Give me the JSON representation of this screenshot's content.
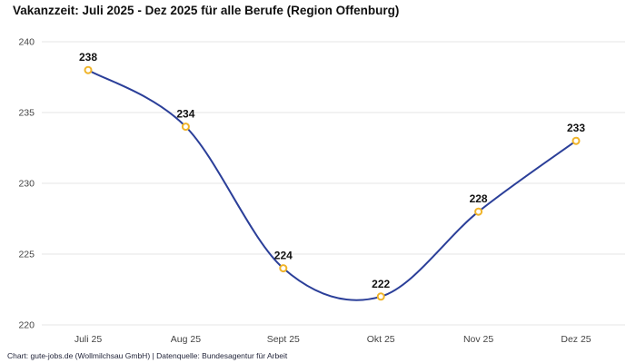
{
  "title": "Vakanzzeit: Juli 2025 - Dez 2025 für alle Berufe (Region Offenburg)",
  "footer": "Chart: gute-jobs.de (Wollmilchsau GmbH) | Datenquelle: Bundesagentur für Arbeit",
  "colors": {
    "line": "#2b3f99",
    "marker_stroke": "#f0b429",
    "marker_fill": "#ffffff",
    "grid": "#e4e4e4",
    "tick_text": "#444444",
    "label_text": "#111111"
  },
  "chart_data": {
    "type": "line",
    "title": "Vakanzzeit: Juli 2025 - Dez 2025 für alle Berufe (Region Offenburg)",
    "categories": [
      "Juli 25",
      "Aug 25",
      "Sept 25",
      "Okt 25",
      "Nov 25",
      "Dez 25"
    ],
    "values": [
      238,
      234,
      224,
      222,
      228,
      233
    ],
    "xlabel": "",
    "ylabel": "",
    "ylim": [
      220,
      240
    ],
    "yticks": [
      220,
      225,
      230,
      235,
      240
    ],
    "grid": true,
    "legend": false,
    "smooth": true,
    "data_labels": true,
    "line_color": "#2b3f99",
    "marker_stroke": "#f0b429",
    "marker_fill": "#ffffff"
  }
}
